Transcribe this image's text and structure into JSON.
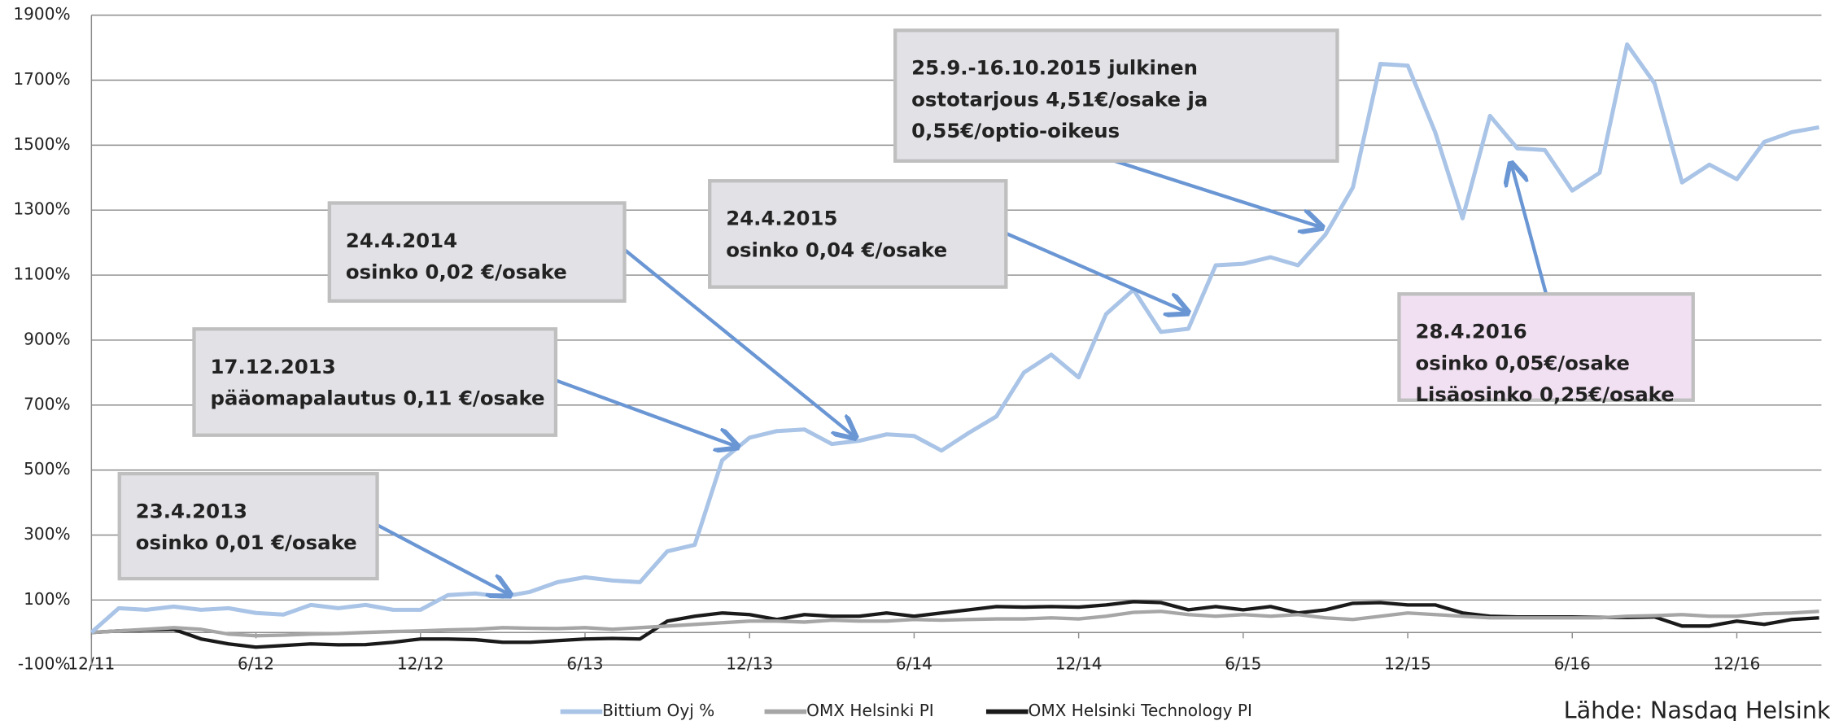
{
  "chart_data": {
    "type": "line",
    "categories": [
      "12/11",
      null,
      null,
      null,
      null,
      null,
      "6/12",
      null,
      null,
      null,
      null,
      null,
      "12/12",
      null,
      null,
      null,
      null,
      null,
      "6/13",
      null,
      null,
      null,
      null,
      null,
      "12/13",
      null,
      null,
      null,
      null,
      null,
      "6/14",
      null,
      null,
      null,
      null,
      null,
      "12/14",
      null,
      null,
      null,
      null,
      null,
      "6/15",
      null,
      null,
      null,
      null,
      null,
      "12/15",
      null,
      null,
      null,
      null,
      null,
      "6/16",
      null,
      null,
      null,
      null,
      null,
      "12/16",
      null,
      null,
      null
    ],
    "series": [
      {
        "name": "Bittium Oyj %",
        "color": "#a9c4e6",
        "values": [
          0,
          75,
          70,
          80,
          70,
          75,
          60,
          55,
          85,
          75,
          85,
          70,
          70,
          115,
          120,
          110,
          125,
          155,
          170,
          160,
          155,
          250,
          270,
          530,
          600,
          620,
          625,
          580,
          590,
          610,
          605,
          560,
          615,
          665,
          800,
          855,
          785,
          980,
          1055,
          925,
          935,
          1130,
          1135,
          1155,
          1130,
          1225,
          1370,
          1750,
          1745,
          1540,
          1275,
          1590,
          1490,
          1485,
          1360,
          1415,
          1810,
          1690,
          1385,
          1440,
          1395,
          1510,
          1540,
          1555
        ]
      },
      {
        "name": "OMX Helsinki PI",
        "color": "#a6a6a6",
        "values": [
          0,
          5,
          10,
          15,
          10,
          -5,
          -10,
          -8,
          -5,
          -3,
          0,
          3,
          5,
          8,
          10,
          15,
          13,
          12,
          15,
          10,
          15,
          20,
          25,
          30,
          35,
          35,
          32,
          38,
          35,
          35,
          40,
          38,
          40,
          42,
          42,
          45,
          42,
          50,
          62,
          65,
          55,
          50,
          55,
          50,
          55,
          45,
          40,
          50,
          60,
          55,
          50,
          45,
          45,
          45,
          45,
          45,
          50,
          52,
          55,
          50,
          50,
          58,
          60,
          65
        ]
      },
      {
        "name": "OMX Helsinki Technology PI",
        "color": "#1a1a1a",
        "values": [
          0,
          5,
          8,
          10,
          -20,
          -35,
          -45,
          -40,
          -35,
          -38,
          -37,
          -30,
          -20,
          -20,
          -22,
          -30,
          -30,
          -25,
          -20,
          -18,
          -20,
          35,
          50,
          60,
          55,
          40,
          55,
          50,
          50,
          60,
          50,
          60,
          70,
          80,
          78,
          80,
          78,
          85,
          95,
          92,
          70,
          80,
          70,
          80,
          60,
          70,
          90,
          92,
          85,
          85,
          60,
          50,
          48,
          48,
          48,
          46,
          46,
          48,
          20,
          20,
          35,
          25,
          40,
          45
        ]
      }
    ],
    "ylim": [
      -100,
      1900
    ],
    "yticks": [
      {
        "value": -100,
        "label": "-100%"
      },
      {
        "value": 100,
        "label": "100%"
      },
      {
        "value": 300,
        "label": "300%"
      },
      {
        "value": 500,
        "label": "500%"
      },
      {
        "value": 700,
        "label": "700%"
      },
      {
        "value": 900,
        "label": "900%"
      },
      {
        "value": 1100,
        "label": "1100%"
      },
      {
        "value": 1300,
        "label": "1300%"
      },
      {
        "value": 1500,
        "label": "1500%"
      },
      {
        "value": 1700,
        "label": "1700%"
      },
      {
        "value": 1900,
        "label": "1900%"
      }
    ],
    "grid": true,
    "legend": "bottom",
    "annotations": [
      {
        "lines": [
          "23.4.2013",
          "osinko 0,01 €/osake"
        ]
      },
      {
        "lines": [
          "17.12.2013",
          "pääomapalautus 0,11 €/osake"
        ]
      },
      {
        "lines": [
          "24.4.2014",
          "osinko 0,02 €/osake"
        ]
      },
      {
        "lines": [
          "24.4.2015",
          "osinko 0,04 €/osake"
        ]
      },
      {
        "lines": [
          "25.9.-16.10.2015 julkinen",
          "ostotarjous 4,51€/osake ja",
          "0,55€/optio-oikeus"
        ]
      },
      {
        "lines": [
          "28.4.2016",
          "osinko 0,05€/osake",
          "Lisäosinko 0,25€/osake"
        ]
      }
    ],
    "source": "Lähde: Nasdaq Helsinki"
  }
}
